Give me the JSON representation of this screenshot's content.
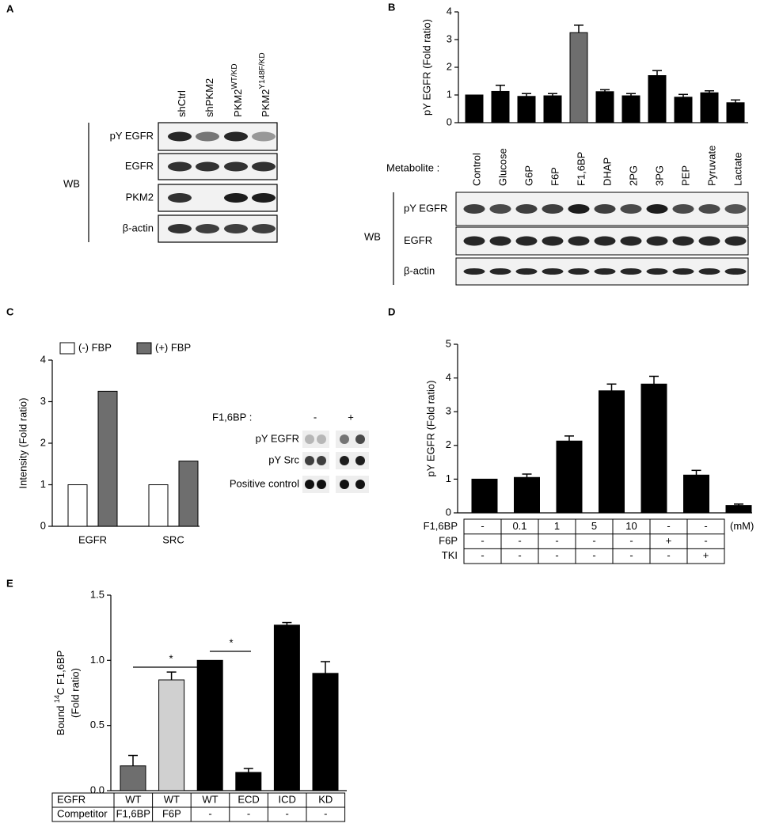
{
  "panel_labels": [
    "A",
    "B",
    "C",
    "D",
    "E"
  ],
  "blot_a": {
    "lanes": [
      {
        "base": "shCtrl"
      },
      {
        "base": "shPKM2"
      },
      {
        "base": "PKM2",
        "sup": "WT/KD"
      },
      {
        "base": "PKM2",
        "sup": "Y148F/KD"
      }
    ],
    "rows": [
      "pY EGFR",
      "EGFR",
      "PKM2",
      "β-actin"
    ],
    "method": "WB"
  },
  "blot_b": {
    "lane_header": "Metabolite :",
    "rows": [
      "pY EGFR",
      "EGFR",
      "β-actin"
    ],
    "method": "WB"
  },
  "dot_blot_c": {
    "treatment": "F1,6BP :",
    "conditions": [
      "-",
      "+"
    ],
    "rows": [
      "pY EGFR",
      "pY Src",
      "Positive control"
    ]
  },
  "chart_data": [
    {
      "type": "bar",
      "ylabel": "pY EGFR (Fold ratio)",
      "categories": [
        "Control",
        "Glucose",
        "G6P",
        "F6P",
        "F1,6BP",
        "DHAP",
        "2PG",
        "3PG",
        "PEP",
        "Pyruvate",
        "Lactate"
      ],
      "values": [
        1.0,
        1.13,
        0.95,
        0.97,
        3.25,
        1.12,
        0.97,
        1.7,
        0.92,
        1.08,
        0.72
      ],
      "errors": [
        null,
        0.22,
        0.1,
        0.08,
        0.27,
        0.07,
        0.08,
        0.18,
        0.1,
        0.07,
        0.1
      ],
      "colors": [
        "#000000",
        "#000000",
        "#000000",
        "#000000",
        "#6e6e6e",
        "#000000",
        "#000000",
        "#000000",
        "#000000",
        "#000000",
        "#000000"
      ],
      "ylim": [
        0,
        4
      ],
      "yticks": [
        0,
        1,
        2,
        3,
        4
      ]
    },
    {
      "type": "grouped_bar",
      "ylabel": "Intensity (Fold ratio)",
      "categories": [
        "EGFR",
        "SRC"
      ],
      "series": [
        {
          "name": "(-) FBP",
          "color": "#ffffff",
          "values": [
            1,
            1
          ]
        },
        {
          "name": "(+) FBP",
          "color": "#6e6e6e",
          "values": [
            3.25,
            1.57
          ]
        }
      ],
      "ylim": [
        0,
        4
      ],
      "yticks": [
        0,
        1,
        2,
        3,
        4
      ],
      "legend": "top"
    },
    {
      "type": "bar",
      "ylabel": "pY EGFR (Fold ratio)",
      "values": [
        1.0,
        1.05,
        2.13,
        3.62,
        3.82,
        1.12,
        0.22
      ],
      "errors": [
        null,
        0.1,
        0.15,
        0.2,
        0.23,
        0.14,
        0.04
      ],
      "color": "#000000",
      "ylim": [
        0,
        5
      ],
      "yticks": [
        0,
        1,
        2,
        3,
        4,
        5
      ]
    },
    {
      "type": "bar",
      "ylabel_parts": [
        "Bound ",
        "14",
        "C F1,6BP"
      ],
      "ylabel2": "(Fold ratio)",
      "values": [
        0.19,
        0.85,
        1.0,
        0.14,
        1.27,
        0.9
      ],
      "errors": [
        0.08,
        0.06,
        null,
        0.03,
        0.02,
        0.09
      ],
      "colors": [
        "#6e6e6e",
        "#d0d0d0",
        "#000000",
        "#000000",
        "#000000",
        "#000000"
      ],
      "ylim": [
        0,
        1.5
      ],
      "yticks": [
        {
          "value": 0,
          "label": "0.0"
        },
        0.5,
        {
          "value": 1,
          "label": "1.0"
        },
        1.5
      ],
      "annotations": [
        "*",
        "*"
      ]
    }
  ],
  "table_d": {
    "unit": "(mM)",
    "rows": [
      {
        "label": "F1,6BP",
        "cells": [
          "-",
          "0.1",
          "1",
          "5",
          "10",
          "-",
          "-"
        ]
      },
      {
        "label": "F6P",
        "cells": [
          "-",
          "-",
          "-",
          "-",
          "-",
          "+",
          "-"
        ]
      },
      {
        "label": "TKI",
        "cells": [
          "-",
          "-",
          "-",
          "-",
          "-",
          "-",
          "+"
        ]
      }
    ]
  },
  "table_e": {
    "rows": [
      {
        "label": "EGFR",
        "cells": [
          "WT",
          "WT",
          "WT",
          "ECD",
          "ICD",
          "KD"
        ]
      },
      {
        "label": "Competitor",
        "cells": [
          "F1,6BP",
          "F6P",
          "-",
          "-",
          "-",
          "-"
        ]
      }
    ]
  }
}
